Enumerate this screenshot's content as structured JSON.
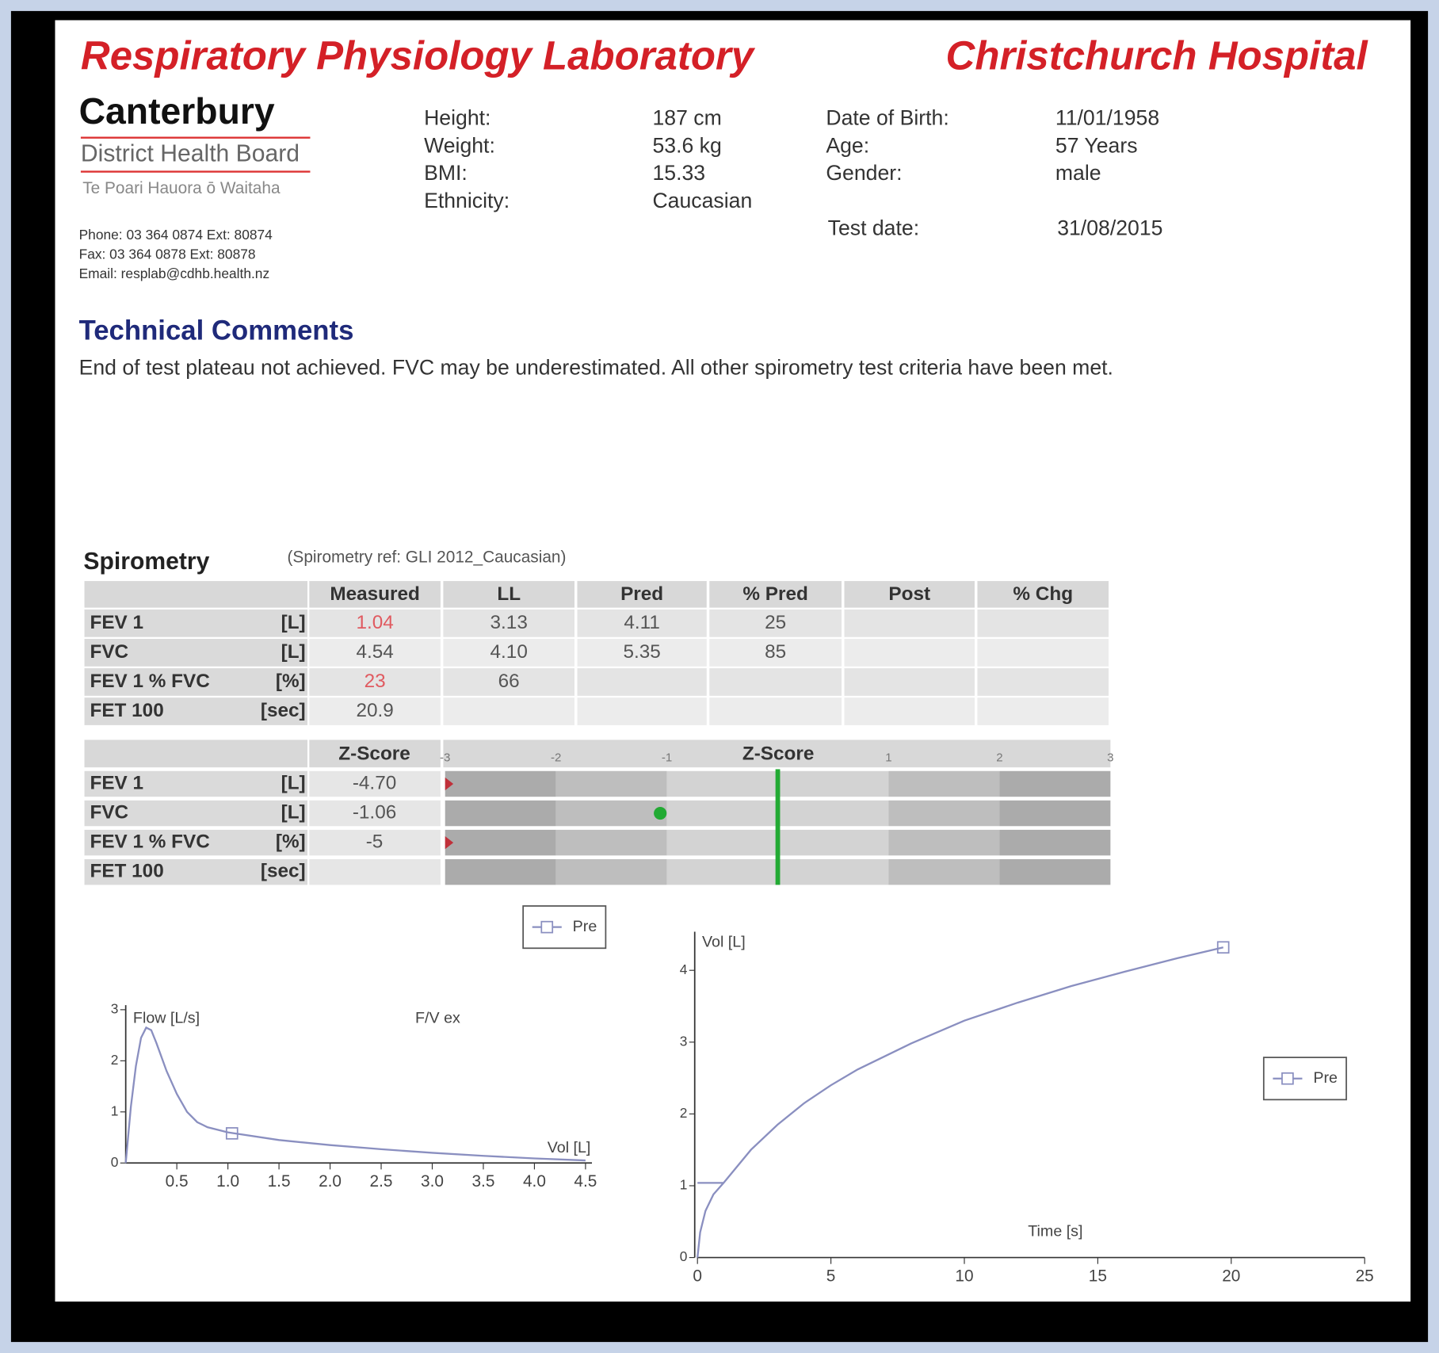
{
  "header": {
    "lab": "Respiratory Physiology Laboratory",
    "hospital": "Christchurch Hospital"
  },
  "logo": {
    "name": "Canterbury",
    "board": "District Health Board",
    "maori": "Te Poari Hauora ō Waitaha"
  },
  "contact": [
    "Phone: 03 364 0874 Ext: 80874",
    "Fax:   03 364 0878 Ext: 80878",
    "Email: resplab@cdhb.health.nz"
  ],
  "patient": {
    "left": [
      [
        "Height:",
        "187 cm"
      ],
      [
        "Weight:",
        "53.6 kg"
      ],
      [
        "BMI:",
        "15.33"
      ],
      [
        "Ethnicity:",
        "Caucasian"
      ]
    ],
    "right": [
      [
        "Date of Birth:",
        "11/01/1958"
      ],
      [
        "Age:",
        "57 Years"
      ],
      [
        "Gender:",
        "male"
      ]
    ],
    "test_date": [
      "Test date:",
      "31/08/2015"
    ]
  },
  "comments": {
    "heading": "Technical Comments",
    "text": "End of test plateau not achieved. FVC may be underestimated. All other spirometry test criteria have been met."
  },
  "spirometry": {
    "title": "Spirometry",
    "reference": "(Spirometry ref: GLI 2012_Caucasian)",
    "flag_color": "#e05a60",
    "columns": [
      "Measured",
      "LL",
      "Pred",
      "% Pred",
      "Post",
      "% Chg"
    ],
    "rows": [
      {
        "name": "FEV 1",
        "unit": "[L]",
        "flagged": true,
        "cells": [
          "1.04",
          "3.13",
          "4.11",
          "25",
          null,
          null
        ]
      },
      {
        "name": "FVC",
        "unit": "[L]",
        "flagged": false,
        "cells": [
          "4.54",
          "4.10",
          "5.35",
          "85",
          null,
          null
        ]
      },
      {
        "name": "FEV 1 % FVC",
        "unit": "[%]",
        "flagged": true,
        "cells": [
          "23",
          "66",
          null,
          null,
          null,
          null
        ]
      },
      {
        "name": "FET 100",
        "unit": "[sec]",
        "flagged": false,
        "cells": [
          "20.9",
          null,
          null,
          null,
          null,
          null
        ]
      }
    ]
  },
  "zscore": {
    "column": "Z-Score",
    "axis_title": "Z-Score",
    "xlim": [
      -3,
      3
    ],
    "xticks": [
      -3,
      -2,
      -1,
      1,
      2,
      3
    ],
    "rows": [
      {
        "name": "FEV 1",
        "unit": "[L]"
      },
      {
        "name": "FVC",
        "unit": "[L]"
      },
      {
        "name": "FEV 1 % FVC",
        "unit": "[%]"
      },
      {
        "name": "FET 100",
        "unit": "[sec]"
      }
    ],
    "values": [
      -4.7,
      -1.06,
      -5,
      null
    ],
    "value_labels": [
      "-4.70",
      "-1.06",
      "-5",
      null
    ],
    "low_color": "#c0303a",
    "normal_color": "#22aa33"
  },
  "flow_volume": {
    "type": "line",
    "title": "F/V ex",
    "x_label": "Vol [L]",
    "y_label": "Flow [L/s]",
    "legend": "Pre",
    "color": "#8a8fc0",
    "xlim": [
      0,
      4.5
    ],
    "ylim": [
      0,
      3
    ],
    "xticks": [
      0.5,
      {
        "value": 1,
        "label": "1.0"
      },
      1.5,
      {
        "value": 2,
        "label": "2.0"
      },
      2.5,
      {
        "value": 3,
        "label": "3.0"
      },
      3.5,
      {
        "value": 4,
        "label": "4.0"
      },
      4.5
    ],
    "yticks": [
      0,
      1,
      2,
      3
    ],
    "x": [
      0,
      0.05,
      0.1,
      0.15,
      0.2,
      0.25,
      0.3,
      0.4,
      0.5,
      0.6,
      0.7,
      0.8,
      1.0,
      1.5,
      2.0,
      2.5,
      3.0,
      3.5,
      4.0,
      4.5
    ],
    "values": [
      0,
      1.1,
      1.9,
      2.45,
      2.65,
      2.6,
      2.35,
      1.8,
      1.35,
      1.0,
      0.8,
      0.7,
      0.6,
      0.45,
      0.35,
      0.27,
      0.2,
      0.14,
      0.09,
      0.05
    ],
    "marker": {
      "x": 1.04,
      "y": 0.58
    }
  },
  "volume_time": {
    "type": "line",
    "x_label": "Time [s]",
    "y_label": "Vol [L]",
    "legend": "Pre",
    "color": "#8a8fc0",
    "xlim": [
      0,
      25
    ],
    "ylim": [
      0,
      4.5
    ],
    "xticks": [
      0,
      5,
      10,
      15,
      20,
      25
    ],
    "yticks": [
      0,
      1,
      2,
      3,
      4
    ],
    "x": [
      0,
      0.1,
      0.3,
      0.6,
      1,
      2,
      3,
      4,
      5,
      6,
      8,
      10,
      12,
      14,
      16,
      18,
      19.7
    ],
    "values": [
      0,
      0.35,
      0.65,
      0.88,
      1.05,
      1.5,
      1.85,
      2.15,
      2.4,
      2.62,
      2.98,
      3.3,
      3.55,
      3.78,
      3.98,
      4.17,
      4.32
    ],
    "marker": {
      "x": 19.7,
      "y": 4.32
    },
    "fev1_marker": {
      "x": 1,
      "y": 1.04
    }
  }
}
